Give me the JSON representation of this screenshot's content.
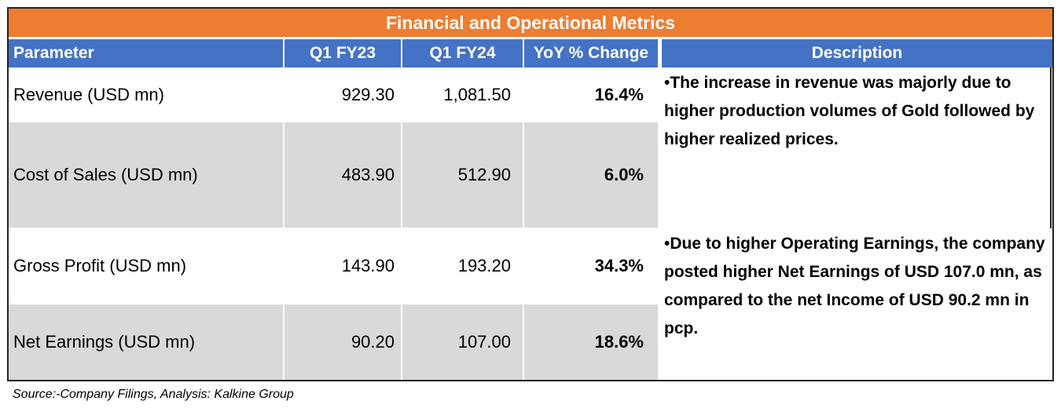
{
  "title": "Financial and Operational Metrics",
  "columns": [
    "Parameter",
    "Q1 FY23",
    "Q1 FY24",
    "YoY % Change",
    "Description"
  ],
  "rows": [
    {
      "parameter": "Revenue (USD mn)",
      "q1_fy23": "929.30",
      "q1_fy24": "1,081.50",
      "yoy": "16.4%"
    },
    {
      "parameter": "Cost of Sales (USD mn)",
      "q1_fy23": "483.90",
      "q1_fy24": "512.90",
      "yoy": "6.0%"
    },
    {
      "parameter": "Gross  Profit (USD mn)",
      "q1_fy23": "143.90",
      "q1_fy24": "193.20",
      "yoy": "34.3%"
    },
    {
      "parameter": "Net Earnings   (USD mn)",
      "q1_fy23": "90.20",
      "q1_fy24": "107.00",
      "yoy": "18.6%"
    }
  ],
  "descriptions": [
    "•The increase in revenue was majorly due to higher production volumes of Gold followed  by higher realized prices.",
    "•Due to higher Operating Earnings, the company posted higher Net Earnings of USD 107.0 mn, as compared to the net Income of USD 90.2 mn in pcp."
  ],
  "source": "Source:-Company Filings, Analysis: Kalkine Group",
  "colors": {
    "title_bg": "#ED7D31",
    "header_bg": "#4472C4",
    "band_bg": "#D9D9D9"
  }
}
